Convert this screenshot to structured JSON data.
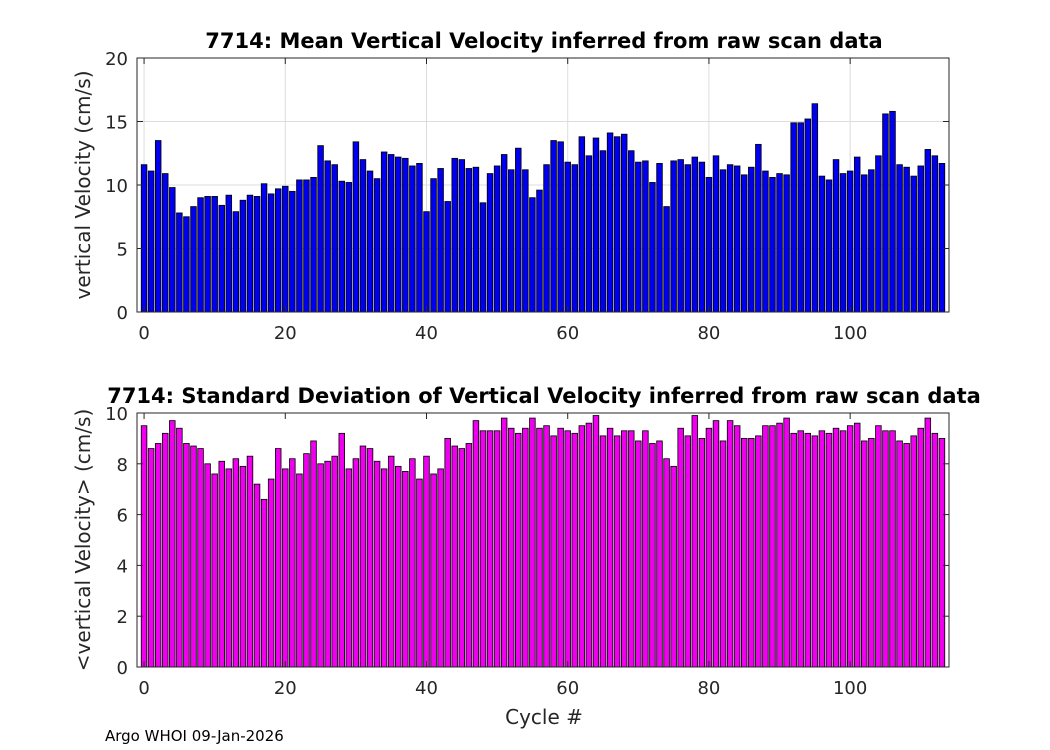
{
  "footer": "Argo WHOI 09-Jan-2026",
  "chart_data": [
    {
      "type": "bar",
      "title": "7714: Mean Vertical Velocity inferred from raw scan data",
      "xlabel": "",
      "ylabel": "vertical Velocity (cm/s)",
      "xlim": [
        -1,
        114
      ],
      "ylim": [
        0,
        20
      ],
      "xticks": [
        0,
        20,
        40,
        60,
        80,
        100
      ],
      "yticks": [
        0,
        5,
        10,
        15,
        20
      ],
      "grid": true,
      "color": "#0000ee",
      "x_start": 0,
      "values": [
        11.6,
        11.1,
        13.5,
        10.9,
        9.8,
        7.8,
        7.5,
        8.3,
        9.0,
        9.1,
        9.1,
        8.4,
        9.2,
        7.9,
        8.8,
        9.2,
        9.1,
        10.1,
        9.3,
        9.7,
        9.9,
        9.5,
        10.4,
        10.4,
        10.6,
        13.1,
        11.9,
        11.6,
        10.3,
        10.2,
        13.4,
        12.0,
        11.1,
        10.5,
        12.6,
        12.4,
        12.2,
        12.1,
        11.5,
        11.7,
        7.9,
        10.5,
        11.3,
        8.7,
        12.1,
        12.0,
        11.3,
        11.4,
        8.6,
        10.9,
        11.5,
        12.4,
        11.2,
        12.9,
        11.2,
        9.0,
        9.6,
        11.6,
        13.5,
        13.4,
        11.8,
        11.6,
        13.8,
        12.3,
        13.7,
        12.7,
        14.1,
        13.8,
        14.0,
        12.7,
        11.8,
        11.9,
        10.2,
        11.7,
        8.3,
        11.9,
        12.0,
        11.6,
        12.2,
        11.8,
        10.6,
        12.3,
        11.2,
        11.6,
        11.5,
        10.8,
        11.4,
        13.2,
        11.1,
        10.6,
        10.9,
        10.8,
        14.9,
        14.9,
        15.2,
        16.4,
        10.7,
        10.4,
        12.0,
        10.9,
        11.1,
        12.2,
        10.8,
        11.2,
        12.3,
        15.6,
        15.8,
        11.6,
        11.4,
        10.7,
        11.5,
        12.8,
        12.3,
        11.7
      ]
    },
    {
      "type": "bar",
      "title": "7714: Standard Deviation of Vertical Velocity inferred from raw scan data",
      "xlabel": "Cycle #",
      "ylabel": "<vertical Velocity> (cm/s)",
      "xlim": [
        -1,
        114
      ],
      "ylim": [
        0,
        10
      ],
      "xticks": [
        0,
        20,
        40,
        60,
        80,
        100
      ],
      "yticks": [
        0,
        2,
        4,
        6,
        8,
        10
      ],
      "grid": false,
      "color": "#ee00ee",
      "x_start": 0,
      "values": [
        9.5,
        8.6,
        8.8,
        9.2,
        9.7,
        9.4,
        8.8,
        8.7,
        8.6,
        8.0,
        7.6,
        8.1,
        7.8,
        8.2,
        7.9,
        8.3,
        7.2,
        6.6,
        7.4,
        8.6,
        7.8,
        8.2,
        7.6,
        8.4,
        8.9,
        8.0,
        8.1,
        8.3,
        9.2,
        7.8,
        8.2,
        8.7,
        8.6,
        8.1,
        7.8,
        8.3,
        7.9,
        7.7,
        8.2,
        7.4,
        8.3,
        7.6,
        7.8,
        9.0,
        8.7,
        8.6,
        8.8,
        9.7,
        9.3,
        9.3,
        9.3,
        9.8,
        9.4,
        9.2,
        9.4,
        9.8,
        9.4,
        9.5,
        9.1,
        9.4,
        9.3,
        9.2,
        9.5,
        9.6,
        9.9,
        9.1,
        9.4,
        9.1,
        9.3,
        9.3,
        8.9,
        9.3,
        8.8,
        8.9,
        8.2,
        7.9,
        9.4,
        9.1,
        9.9,
        9.0,
        9.4,
        9.7,
        8.9,
        9.7,
        9.5,
        9.0,
        9.0,
        9.1,
        9.5,
        9.5,
        9.6,
        9.8,
        9.2,
        9.3,
        9.2,
        9.1,
        9.3,
        9.2,
        9.4,
        9.3,
        9.5,
        9.6,
        8.9,
        9.0,
        9.5,
        9.3,
        9.3,
        8.9,
        8.8,
        9.1,
        9.4,
        9.8,
        9.2,
        9.0
      ]
    }
  ]
}
